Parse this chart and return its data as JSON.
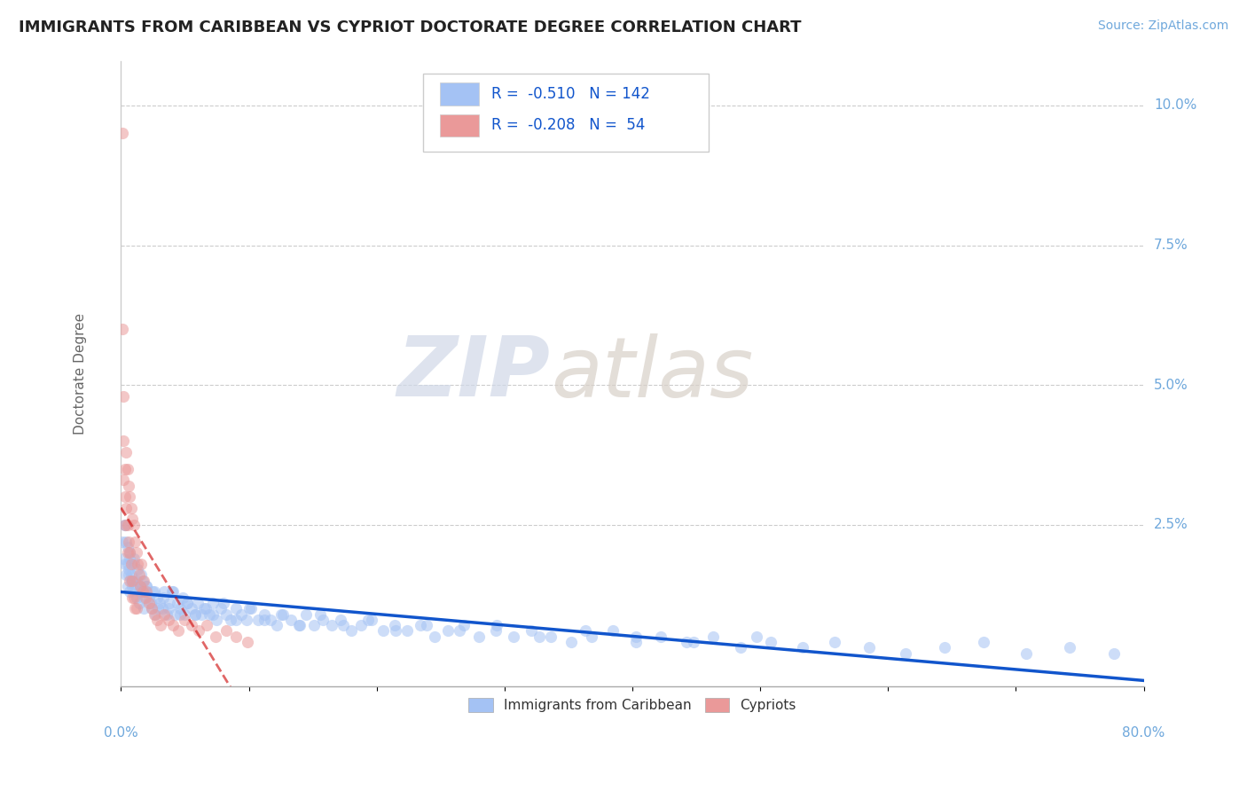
{
  "title": "IMMIGRANTS FROM CARIBBEAN VS CYPRIOT DOCTORATE DEGREE CORRELATION CHART",
  "source": "Source: ZipAtlas.com",
  "ylabel": "Doctorate Degree",
  "xmin": 0.0,
  "xmax": 0.8,
  "ymin": -0.004,
  "ymax": 0.108,
  "yticks": [
    0.025,
    0.05,
    0.075,
    0.1
  ],
  "ytick_labels": [
    "2.5%",
    "5.0%",
    "7.5%",
    "10.0%"
  ],
  "xtick_left": 0.0,
  "xtick_right": 0.8,
  "legend1_label": "Immigrants from Caribbean",
  "legend2_label": "Cypriots",
  "r1": "-0.510",
  "n1": "142",
  "r2": "-0.208",
  "n2": "54",
  "blue_color": "#a4c2f4",
  "pink_color": "#ea9999",
  "blue_line_color": "#1155cc",
  "pink_line_color": "#cc0000",
  "watermark_zip": "ZIP",
  "watermark_atlas": "atlas",
  "background_color": "#ffffff",
  "title_fontsize": 13,
  "tick_color": "#6fa8dc",
  "ylabel_color": "#666666",
  "blue_scatter_x": [
    0.001,
    0.002,
    0.003,
    0.003,
    0.004,
    0.005,
    0.005,
    0.006,
    0.007,
    0.007,
    0.008,
    0.009,
    0.01,
    0.011,
    0.012,
    0.013,
    0.014,
    0.015,
    0.016,
    0.017,
    0.018,
    0.019,
    0.02,
    0.022,
    0.024,
    0.025,
    0.027,
    0.028,
    0.03,
    0.032,
    0.034,
    0.036,
    0.038,
    0.04,
    0.042,
    0.044,
    0.046,
    0.048,
    0.05,
    0.052,
    0.055,
    0.058,
    0.06,
    0.063,
    0.066,
    0.069,
    0.072,
    0.075,
    0.078,
    0.082,
    0.086,
    0.09,
    0.094,
    0.098,
    0.102,
    0.107,
    0.112,
    0.117,
    0.122,
    0.127,
    0.133,
    0.139,
    0.145,
    0.151,
    0.158,
    0.165,
    0.172,
    0.18,
    0.188,
    0.196,
    0.205,
    0.214,
    0.224,
    0.234,
    0.245,
    0.256,
    0.268,
    0.28,
    0.293,
    0.307,
    0.321,
    0.336,
    0.352,
    0.368,
    0.385,
    0.403,
    0.422,
    0.442,
    0.463,
    0.485,
    0.508,
    0.533,
    0.558,
    0.585,
    0.614,
    0.644,
    0.675,
    0.708,
    0.742,
    0.777,
    0.003,
    0.004,
    0.005,
    0.006,
    0.007,
    0.008,
    0.009,
    0.01,
    0.012,
    0.014,
    0.016,
    0.018,
    0.02,
    0.023,
    0.026,
    0.029,
    0.033,
    0.037,
    0.041,
    0.046,
    0.052,
    0.058,
    0.065,
    0.072,
    0.08,
    0.09,
    0.1,
    0.112,
    0.125,
    0.14,
    0.156,
    0.174,
    0.193,
    0.215,
    0.239,
    0.265,
    0.294,
    0.327,
    0.363,
    0.403,
    0.448,
    0.497
  ],
  "blue_scatter_y": [
    0.022,
    0.019,
    0.025,
    0.018,
    0.016,
    0.021,
    0.014,
    0.017,
    0.019,
    0.013,
    0.016,
    0.015,
    0.018,
    0.014,
    0.012,
    0.017,
    0.011,
    0.014,
    0.013,
    0.015,
    0.01,
    0.013,
    0.014,
    0.012,
    0.01,
    0.013,
    0.009,
    0.012,
    0.011,
    0.01,
    0.013,
    0.009,
    0.011,
    0.013,
    0.009,
    0.011,
    0.01,
    0.012,
    0.009,
    0.011,
    0.01,
    0.009,
    0.011,
    0.009,
    0.01,
    0.009,
    0.011,
    0.008,
    0.01,
    0.009,
    0.008,
    0.01,
    0.009,
    0.008,
    0.01,
    0.008,
    0.009,
    0.008,
    0.007,
    0.009,
    0.008,
    0.007,
    0.009,
    0.007,
    0.008,
    0.007,
    0.008,
    0.006,
    0.007,
    0.008,
    0.006,
    0.007,
    0.006,
    0.007,
    0.005,
    0.006,
    0.007,
    0.005,
    0.006,
    0.005,
    0.006,
    0.005,
    0.004,
    0.005,
    0.006,
    0.004,
    0.005,
    0.004,
    0.005,
    0.003,
    0.004,
    0.003,
    0.004,
    0.003,
    0.002,
    0.003,
    0.004,
    0.002,
    0.003,
    0.002,
    0.025,
    0.022,
    0.018,
    0.016,
    0.02,
    0.015,
    0.014,
    0.019,
    0.015,
    0.013,
    0.016,
    0.012,
    0.014,
    0.011,
    0.013,
    0.01,
    0.012,
    0.01,
    0.013,
    0.009,
    0.011,
    0.009,
    0.01,
    0.009,
    0.011,
    0.008,
    0.01,
    0.008,
    0.009,
    0.007,
    0.009,
    0.007,
    0.008,
    0.006,
    0.007,
    0.006,
    0.007,
    0.005,
    0.006,
    0.005,
    0.004,
    0.005
  ],
  "pink_scatter_x": [
    0.001,
    0.001,
    0.002,
    0.002,
    0.003,
    0.003,
    0.004,
    0.004,
    0.005,
    0.005,
    0.006,
    0.006,
    0.007,
    0.007,
    0.008,
    0.008,
    0.009,
    0.009,
    0.01,
    0.01,
    0.011,
    0.011,
    0.012,
    0.013,
    0.014,
    0.015,
    0.016,
    0.017,
    0.018,
    0.019,
    0.02,
    0.022,
    0.024,
    0.026,
    0.028,
    0.031,
    0.034,
    0.037,
    0.041,
    0.045,
    0.05,
    0.055,
    0.061,
    0.067,
    0.074,
    0.082,
    0.09,
    0.099,
    0.002,
    0.003,
    0.005,
    0.007,
    0.009,
    0.012
  ],
  "pink_scatter_y": [
    0.095,
    0.06,
    0.048,
    0.04,
    0.035,
    0.03,
    0.038,
    0.028,
    0.035,
    0.025,
    0.032,
    0.022,
    0.03,
    0.02,
    0.028,
    0.018,
    0.026,
    0.015,
    0.025,
    0.012,
    0.022,
    0.01,
    0.02,
    0.018,
    0.016,
    0.014,
    0.018,
    0.013,
    0.015,
    0.012,
    0.013,
    0.011,
    0.01,
    0.009,
    0.008,
    0.007,
    0.009,
    0.008,
    0.007,
    0.006,
    0.008,
    0.007,
    0.006,
    0.007,
    0.005,
    0.006,
    0.005,
    0.004,
    0.033,
    0.025,
    0.02,
    0.015,
    0.012,
    0.01
  ]
}
